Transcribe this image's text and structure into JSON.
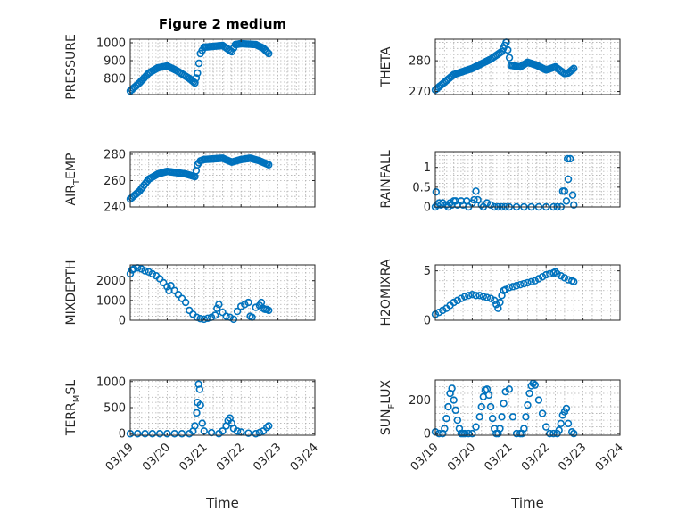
{
  "figure": {
    "title": "Figure 2 medium",
    "marker_color": "#0072BD",
    "xlabel": "Time",
    "date_ticks": [
      "03/19",
      "03/20",
      "03/21",
      "03/22",
      "03/23",
      "03/24"
    ]
  },
  "chart_data": [
    {
      "type": "scatter",
      "title": "Figure 2 medium",
      "ylabel": "PRESSURE",
      "xlim": [
        0,
        5
      ],
      "ylim": [
        710,
        1020
      ],
      "yticks": [
        800,
        900,
        1000
      ],
      "x_tick_labels": [],
      "xlabel": "",
      "segments": [
        {
          "x": [
            0.0,
            0.25,
            0.5,
            0.75,
            1.0,
            1.25,
            1.6,
            1.75
          ],
          "y": [
            730,
            775,
            830,
            860,
            870,
            845,
            800,
            775
          ]
        },
        {
          "x": [
            1.75,
            1.82,
            1.9,
            2.0,
            2.5,
            2.75,
            2.85,
            3.0,
            3.4,
            3.6,
            3.75
          ],
          "y": [
            775,
            830,
            940,
            975,
            985,
            950,
            990,
            995,
            990,
            970,
            940
          ]
        }
      ]
    },
    {
      "type": "scatter",
      "title": "",
      "ylabel": "THETA",
      "xlim": [
        0,
        5
      ],
      "ylim": [
        269,
        287
      ],
      "yticks": [
        270,
        280
      ],
      "x_tick_labels": [],
      "xlabel": "",
      "segments": [
        {
          "x": [
            0.0,
            0.3,
            0.5,
            1.0,
            1.5,
            1.8,
            1.92
          ],
          "y": [
            270.5,
            273.5,
            275.5,
            277.5,
            280.5,
            283.0,
            286.0
          ]
        },
        {
          "x": [
            1.92,
            2.05,
            2.3,
            2.5,
            2.75,
            3.0,
            3.25,
            3.5,
            3.6,
            3.75
          ],
          "y": [
            286.0,
            278.5,
            278.0,
            279.5,
            278.5,
            277.0,
            278.0,
            275.8,
            276.0,
            277.5
          ]
        }
      ]
    },
    {
      "type": "scatter",
      "title": "",
      "ylabel": "AIR_TEMP",
      "xlim": [
        0,
        5
      ],
      "ylim": [
        240,
        282
      ],
      "yticks": [
        240,
        260,
        280
      ],
      "x_tick_labels": [],
      "xlabel": "",
      "segments": [
        {
          "x": [
            0.0,
            0.25,
            0.5,
            0.75,
            1.0,
            1.25,
            1.5,
            1.75
          ],
          "y": [
            246,
            252,
            261,
            265,
            267,
            266,
            265,
            263
          ]
        },
        {
          "x": [
            1.75,
            1.82,
            1.9,
            2.0,
            2.5,
            2.75,
            3.0,
            3.25,
            3.5,
            3.75
          ],
          "y": [
            263,
            272,
            275,
            276,
            277,
            274,
            276,
            277,
            275,
            272
          ]
        }
      ]
    },
    {
      "type": "scatter",
      "title": "",
      "ylabel": "RAINFALL",
      "xlim": [
        0,
        5
      ],
      "ylim": [
        0,
        1.4
      ],
      "yticks": [
        0,
        0.5,
        1
      ],
      "x_tick_labels": [],
      "xlabel": "",
      "points": {
        "x": [
          0.0,
          0.02,
          0.05,
          0.1,
          0.15,
          0.2,
          0.3,
          0.35,
          0.4,
          0.45,
          0.5,
          0.55,
          0.6,
          0.7,
          0.75,
          0.85,
          0.9,
          1.0,
          1.05,
          1.1,
          1.15,
          1.25,
          1.3,
          1.4,
          1.5,
          1.6,
          1.7,
          1.8,
          1.9,
          2.0,
          2.2,
          2.4,
          2.6,
          2.8,
          3.0,
          3.2,
          3.3,
          3.4,
          3.45,
          3.5,
          3.55,
          3.58,
          3.6,
          3.65,
          3.72,
          3.75
        ],
        "y": [
          0.0,
          0.38,
          0.05,
          0.1,
          0.05,
          0.1,
          0.05,
          0.0,
          0.1,
          0.05,
          0.15,
          0.15,
          0.05,
          0.15,
          0.05,
          0.15,
          0.0,
          0.1,
          0.18,
          0.4,
          0.18,
          0.05,
          0.0,
          0.1,
          0.05,
          0.0,
          0.0,
          0.0,
          0.0,
          0.0,
          0.0,
          0.0,
          0.0,
          0.0,
          0.0,
          0.0,
          0.0,
          0.0,
          0.4,
          0.4,
          0.15,
          1.22,
          0.7,
          1.22,
          0.3,
          0.05
        ]
      }
    },
    {
      "type": "scatter",
      "title": "",
      "ylabel": "MIXDEPTH",
      "xlim": [
        0,
        5
      ],
      "ylim": [
        0,
        2800
      ],
      "yticks": [
        0,
        1000,
        2000
      ],
      "x_tick_labels": [],
      "xlabel": "",
      "points": {
        "x": [
          0.0,
          0.05,
          0.1,
          0.2,
          0.3,
          0.4,
          0.5,
          0.6,
          0.7,
          0.8,
          0.9,
          1.0,
          1.05,
          1.1,
          1.2,
          1.3,
          1.4,
          1.5,
          1.6,
          1.7,
          1.8,
          1.9,
          2.0,
          2.1,
          2.2,
          2.3,
          2.35,
          2.4,
          2.5,
          2.6,
          2.7,
          2.8,
          2.9,
          3.0,
          3.1,
          3.2,
          3.25,
          3.3,
          3.4,
          3.5,
          3.55,
          3.6,
          3.65,
          3.7,
          3.75
        ],
        "y": [
          2350,
          2550,
          2600,
          2650,
          2600,
          2500,
          2450,
          2350,
          2250,
          2100,
          1900,
          1700,
          1500,
          1750,
          1500,
          1300,
          1100,
          900,
          500,
          300,
          150,
          80,
          50,
          100,
          150,
          250,
          600,
          800,
          400,
          200,
          150,
          50,
          450,
          700,
          800,
          900,
          200,
          150,
          650,
          750,
          900,
          600,
          550,
          550,
          500
        ]
      }
    },
    {
      "type": "scatter",
      "title": "",
      "ylabel": "H2OMIXRA",
      "xlim": [
        0,
        5
      ],
      "ylim": [
        0,
        5.6
      ],
      "yticks": [
        0,
        5
      ],
      "x_tick_labels": [],
      "xlabel": "",
      "points": {
        "x": [
          0.0,
          0.1,
          0.2,
          0.3,
          0.4,
          0.5,
          0.6,
          0.7,
          0.8,
          0.9,
          1.0,
          1.1,
          1.2,
          1.3,
          1.4,
          1.5,
          1.6,
          1.65,
          1.7,
          1.75,
          1.8,
          1.85,
          1.9,
          2.0,
          2.1,
          2.2,
          2.3,
          2.4,
          2.5,
          2.6,
          2.7,
          2.8,
          2.9,
          3.0,
          3.1,
          3.2,
          3.25,
          3.3,
          3.4,
          3.5,
          3.6,
          3.7,
          3.75
        ],
        "y": [
          0.6,
          0.8,
          1.0,
          1.2,
          1.5,
          1.8,
          2.0,
          2.2,
          2.4,
          2.5,
          2.6,
          2.5,
          2.5,
          2.4,
          2.3,
          2.2,
          2.0,
          1.6,
          1.2,
          1.8,
          2.5,
          3.0,
          3.1,
          3.3,
          3.4,
          3.5,
          3.6,
          3.7,
          3.8,
          3.9,
          4.0,
          4.2,
          4.4,
          4.6,
          4.7,
          4.8,
          4.9,
          4.7,
          4.5,
          4.3,
          4.1,
          4.0,
          3.9
        ]
      }
    },
    {
      "type": "scatter",
      "title": "",
      "ylabel": "TERR_MSL",
      "xlim": [
        0,
        5
      ],
      "ylim": [
        -30,
        1030
      ],
      "yticks": [
        0,
        500,
        1000
      ],
      "x_tick_labels": [
        "03/19",
        "03/20",
        "03/21",
        "03/22",
        "03/23",
        "03/24"
      ],
      "xlabel": "Time",
      "points": {
        "x": [
          0.0,
          0.2,
          0.4,
          0.6,
          0.8,
          1.0,
          1.2,
          1.4,
          1.6,
          1.7,
          1.75,
          1.8,
          1.82,
          1.85,
          1.88,
          1.9,
          1.95,
          2.0,
          2.2,
          2.4,
          2.5,
          2.6,
          2.65,
          2.7,
          2.75,
          2.8,
          2.9,
          3.0,
          3.2,
          3.4,
          3.5,
          3.6,
          3.7,
          3.75
        ],
        "y": [
          0,
          0,
          0,
          0,
          0,
          0,
          0,
          0,
          0,
          50,
          150,
          400,
          600,
          950,
          850,
          550,
          200,
          50,
          20,
          0,
          50,
          150,
          250,
          300,
          200,
          100,
          50,
          30,
          10,
          0,
          20,
          50,
          120,
          150
        ]
      }
    },
    {
      "type": "scatter",
      "title": "",
      "ylabel": "SUN_FLUX",
      "xlim": [
        0,
        5
      ],
      "ylim": [
        -10,
        320
      ],
      "yticks": [
        0,
        200
      ],
      "x_tick_labels": [
        "03/19",
        "03/20",
        "03/21",
        "03/22",
        "03/23",
        "03/24"
      ],
      "xlabel": "Time",
      "points": {
        "x": [
          0.0,
          0.1,
          0.2,
          0.25,
          0.3,
          0.35,
          0.4,
          0.45,
          0.5,
          0.55,
          0.6,
          0.65,
          0.7,
          0.75,
          0.8,
          0.9,
          1.0,
          1.1,
          1.2,
          1.25,
          1.3,
          1.35,
          1.4,
          1.45,
          1.5,
          1.55,
          1.6,
          1.65,
          1.7,
          1.75,
          1.8,
          1.85,
          1.9,
          2.0,
          2.1,
          2.2,
          2.3,
          2.35,
          2.4,
          2.45,
          2.5,
          2.55,
          2.6,
          2.65,
          2.7,
          2.8,
          2.9,
          3.0,
          3.1,
          3.2,
          3.3,
          3.35,
          3.4,
          3.45,
          3.5,
          3.55,
          3.6,
          3.7,
          3.75
        ],
        "y": [
          10,
          0,
          0,
          30,
          90,
          160,
          240,
          270,
          200,
          140,
          80,
          30,
          0,
          0,
          0,
          0,
          0,
          40,
          100,
          160,
          220,
          260,
          265,
          230,
          160,
          90,
          30,
          0,
          0,
          30,
          100,
          180,
          250,
          265,
          100,
          0,
          0,
          0,
          30,
          100,
          170,
          240,
          285,
          300,
          290,
          200,
          120,
          40,
          0,
          0,
          0,
          20,
          60,
          110,
          130,
          150,
          60,
          10,
          0
        ]
      }
    }
  ]
}
